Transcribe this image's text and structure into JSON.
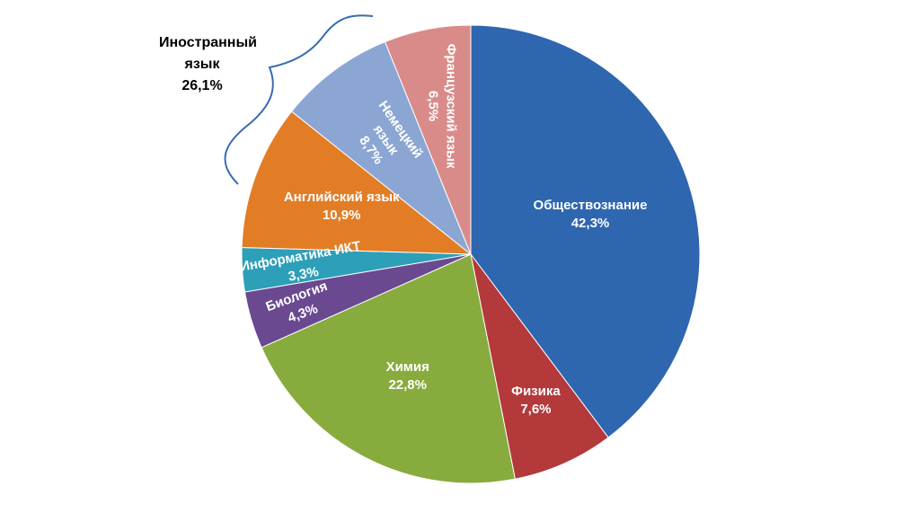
{
  "chart_data": {
    "type": "pie",
    "categories": [
      "Обществознание",
      "Физика",
      "Химия",
      "Биология",
      "Информатика ИКТ",
      "Английский язык",
      "Немецкий язык",
      "Французский язык"
    ],
    "values": [
      42.3,
      7.6,
      22.8,
      4.3,
      3.3,
      10.9,
      8.7,
      6.5
    ],
    "value_labels": [
      "42,3%",
      "7,6%",
      "22,8%",
      "4,3%",
      "3,3%",
      "10,9%",
      "8,7%",
      "6,5%"
    ],
    "colors": [
      "#2f66b0",
      "#b3393a",
      "#88ab3e",
      "#6a4990",
      "#2d9fb8",
      "#e27d26",
      "#8ba6d3",
      "#d98b8a"
    ],
    "annotation": {
      "text": "Иностранный язык",
      "value": 26.1,
      "value_label": "26,1%"
    }
  }
}
